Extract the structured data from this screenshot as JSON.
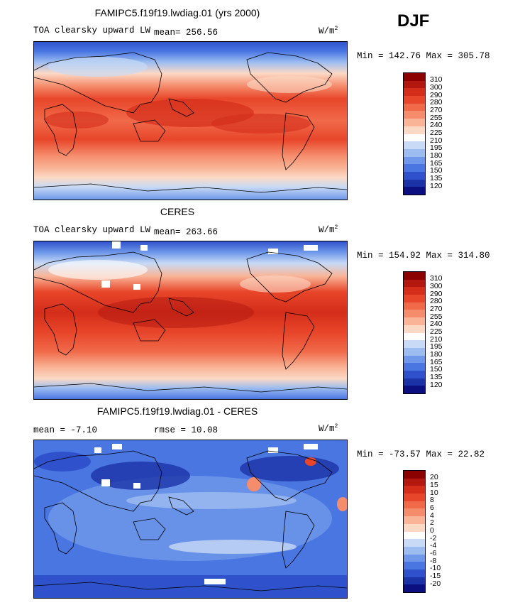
{
  "season": "DJF",
  "panels": [
    {
      "title": "FAMIPC5.f19f19.lwdiag.01 (yrs 2000)",
      "variable_label": "TOA clearsky upward LW",
      "stat_text": "mean= 256.56",
      "units_base": "W/m",
      "units_exp": "2",
      "minmax": "Min = 142.76 Max = 305.78",
      "levels": [
        "310",
        "300",
        "290",
        "280",
        "270",
        "255",
        "240",
        "225",
        "210",
        "195",
        "180",
        "165",
        "150",
        "135",
        "120"
      ],
      "colors": [
        "#8b0000",
        "#b2180f",
        "#d42d1a",
        "#e8462a",
        "#f06a4a",
        "#f58c6c",
        "#f9b497",
        "#fcd9c5",
        "#ffffff",
        "#c8daf5",
        "#9dbdf0",
        "#6f98ea",
        "#4a76e2",
        "#2f52cc",
        "#1c33a8",
        "#0b0f80"
      ]
    },
    {
      "title": "CERES",
      "variable_label": "TOA clearsky upward LW",
      "stat_text": "mean= 263.66",
      "units_base": "W/m",
      "units_exp": "2",
      "minmax": "Min = 154.92 Max = 314.80",
      "levels": [
        "310",
        "300",
        "290",
        "280",
        "270",
        "255",
        "240",
        "225",
        "210",
        "195",
        "180",
        "165",
        "150",
        "135",
        "120"
      ],
      "colors": [
        "#8b0000",
        "#b2180f",
        "#d42d1a",
        "#e8462a",
        "#f06a4a",
        "#f58c6c",
        "#f9b497",
        "#fcd9c5",
        "#ffffff",
        "#c8daf5",
        "#9dbdf0",
        "#6f98ea",
        "#4a76e2",
        "#2f52cc",
        "#1c33a8",
        "#0b0f80"
      ]
    },
    {
      "title": "FAMIPC5.f19f19.lwdiag.01 - CERES",
      "mean_text": "mean =  -7.10",
      "rmse_text": "rmse =  10.08",
      "units_base": "W/m",
      "units_exp": "2",
      "minmax": "Min = -73.57 Max =  22.82",
      "levels": [
        "20",
        "15",
        "10",
        "8",
        "6",
        "4",
        "2",
        "0",
        "-2",
        "-4",
        "-6",
        "-8",
        "-10",
        "-15",
        "-20"
      ],
      "colors": [
        "#8b0000",
        "#b2180f",
        "#d42d1a",
        "#e8462a",
        "#f06a4a",
        "#f58c6c",
        "#f9b497",
        "#fcd9c5",
        "#ffffff",
        "#c8daf5",
        "#9dbdf0",
        "#6f98ea",
        "#4a76e2",
        "#2f52cc",
        "#1c33a8",
        "#0b0f80"
      ]
    }
  ]
}
